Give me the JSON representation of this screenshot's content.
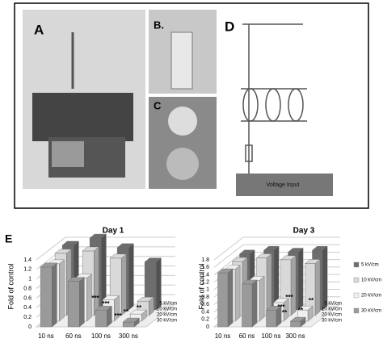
{
  "panels": {
    "a": "A",
    "b": "B.",
    "c": "C",
    "d": "D",
    "voltage_input": "Voltage Input",
    "e": "E"
  },
  "chart_data": [
    {
      "type": "bar3d",
      "title": "Day 1",
      "y_label": "Fold of control",
      "categories": [
        "10 ns",
        "60 ns",
        "100 ns",
        "300 ns"
      ],
      "series": [
        {
          "name": "5 kV/cm",
          "color": "#6d6d6d",
          "values": [
            1.35,
            1.5,
            1.3,
            1.0
          ]
        },
        {
          "name": "10 kV/cm",
          "color": "#d9d9d9",
          "values": [
            1.3,
            1.35,
            1.2,
            0.3
          ]
        },
        {
          "name": "20 kV/cm",
          "color": "#f0f0f0",
          "values": [
            1.2,
            0.9,
            0.45,
            0.15
          ]
        },
        {
          "name": "30 kV/cm",
          "color": "#9a9a9a",
          "values": [
            1.25,
            0.95,
            0.35,
            0.1
          ]
        }
      ],
      "ylim": [
        0,
        1.4
      ],
      "yticks": [
        0,
        0.2,
        0.4,
        0.6,
        0.8,
        1,
        1.2,
        1.4
      ],
      "annotations": [
        "***",
        "***",
        "***",
        "**",
        "**"
      ]
    },
    {
      "type": "bar3d",
      "title": "Day 3",
      "y_label": "Fold of control",
      "categories": [
        "10 ns",
        "60 ns",
        "100 ns",
        "300 ns"
      ],
      "series": [
        {
          "name": "5 kV/cm",
          "color": "#6d6d6d",
          "values": [
            1.5,
            1.6,
            1.55,
            1.6
          ]
        },
        {
          "name": "10 kV/cm",
          "color": "#d9d9d9",
          "values": [
            1.45,
            1.55,
            1.5,
            1.4
          ]
        },
        {
          "name": "20 kV/cm",
          "color": "#f0f0f0",
          "values": [
            1.4,
            1.1,
            0.5,
            0.3
          ]
        },
        {
          "name": "30 kV/cm",
          "color": "#9a9a9a",
          "values": [
            1.45,
            1.15,
            0.45,
            0.15
          ]
        }
      ],
      "ylim": [
        0,
        1.8
      ],
      "yticks": [
        0,
        0.2,
        0.4,
        0.6,
        0.8,
        1,
        1.2,
        1.4,
        1.6,
        1.8
      ],
      "annotations": [
        "***",
        "**",
        "***",
        "**",
        "**"
      ],
      "legend": "right"
    }
  ]
}
